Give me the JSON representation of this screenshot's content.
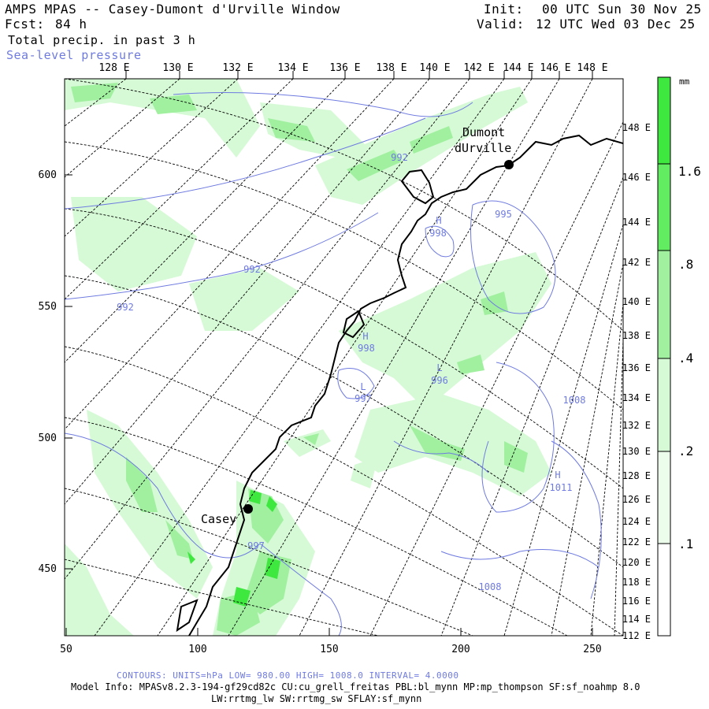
{
  "header": {
    "title": "AMPS MPAS -- Casey-Dumont d'Urville Window",
    "fcst_label": "Fcst:",
    "fcst_value": "84 h",
    "field_primary": "Total precip. in past 3 h",
    "field_secondary": "Sea-level pressure",
    "init_label": "Init:",
    "init_value": "00 UTC Sun 30 Nov 25",
    "valid_label": "Valid:",
    "valid_value": "12 UTC Wed 03 Dec 25"
  },
  "top_axis_labels": [
    "128 E",
    "130 E",
    "132 E",
    "134 E",
    "136 E",
    "138 E",
    "140 E",
    "142 E",
    "144 E",
    "146 E",
    "148 E"
  ],
  "right_axis_labels": [
    "148 E",
    "146 E",
    "144 E",
    "142 E",
    "140 E",
    "138 E",
    "136 E",
    "134 E",
    "132 E",
    "130 E",
    "128 E",
    "126 E",
    "124 E",
    "122 E",
    "120 E",
    "118 E",
    "116 E",
    "114 E",
    "112 E"
  ],
  "x_axis_labels": [
    "50",
    "100",
    "150",
    "200",
    "250"
  ],
  "y_axis_labels": [
    "600",
    "550",
    "500",
    "450"
  ],
  "pressure_labels": [
    "992",
    "992",
    "992",
    "995",
    "998",
    "998",
    "996",
    "997",
    "1008",
    "1011",
    "1008",
    "997"
  ],
  "pressure_markers": [
    "H",
    "H",
    "L",
    "L",
    "H"
  ],
  "places": [
    {
      "name_line1": "Dumont",
      "name_line2": "dUrville"
    },
    {
      "name_line1": "Casey",
      "name_line2": ""
    }
  ],
  "colorbar": {
    "units": "mm",
    "labels": [
      "1.6",
      ".8",
      ".4",
      ".2",
      ".1"
    ],
    "colors": {
      "light": "#d6fad6",
      "mid": "#a0f0a0",
      "dark": "#3ee83e"
    }
  },
  "footer": {
    "contours": "CONTOURS:  UNITS=hPa  LOW=  980.00      HIGH=  1008.0      INTERVAL=   4.0000",
    "model_info_line1": "Model Info: MPASv8.2.3-194-gf29cd82c CU:cu_grell_freitas PBL:bl_mynn MP:mp_thompson SF:sf_noahmp 8.0",
    "model_info_line2": "LW:rrtmg_lw SW:rrtmg_sw SFLAY:sf_mynn"
  },
  "colors": {
    "contour": "#6f7be0",
    "grid": "#000000",
    "coast": "#000000"
  }
}
